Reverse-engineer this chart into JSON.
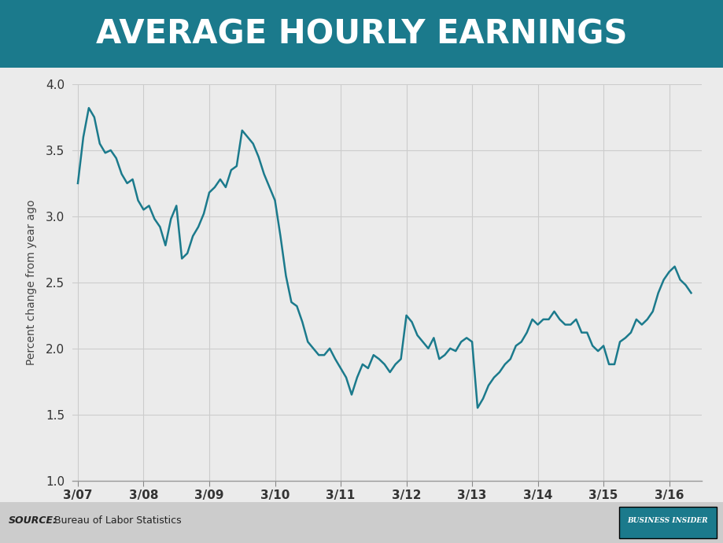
{
  "title": "AVERAGE HOURLY EARNINGS",
  "title_bg_color": "#1b7a8c",
  "title_text_color": "#ffffff",
  "chart_bg_color": "#ebebeb",
  "line_color": "#1b7a8c",
  "ylabel": "Percent change from year ago",
  "ylim": [
    1.0,
    4.0
  ],
  "yticks": [
    1.0,
    1.5,
    2.0,
    2.5,
    3.0,
    3.5,
    4.0
  ],
  "source_text": "SOURCE:  Bureau of Labor Statistics",
  "footer_bg_color": "#cccccc",
  "bi_label": "BUSINESS INSIDER",
  "bi_bg_color": "#1b7a8c",
  "xtick_labels": [
    "3/07",
    "3/08",
    "3/09",
    "3/10",
    "3/11",
    "3/12",
    "3/13",
    "3/14",
    "3/15",
    "3/16"
  ],
  "data_x": [
    0,
    1,
    2,
    3,
    4,
    5,
    6,
    7,
    8,
    9,
    10,
    11,
    12,
    13,
    14,
    15,
    16,
    17,
    18,
    19,
    20,
    21,
    22,
    23,
    24,
    25,
    26,
    27,
    28,
    29,
    30,
    31,
    32,
    33,
    34,
    35,
    36,
    37,
    38,
    39,
    40,
    41,
    42,
    43,
    44,
    45,
    46,
    47,
    48,
    49,
    50,
    51,
    52,
    53,
    54,
    55,
    56,
    57,
    58,
    59,
    60,
    61,
    62,
    63,
    64,
    65,
    66,
    67,
    68,
    69,
    70,
    71,
    72,
    73,
    74,
    75,
    76,
    77,
    78,
    79,
    80,
    81,
    82,
    83,
    84,
    85,
    86,
    87,
    88,
    89,
    90,
    91,
    92,
    93,
    94,
    95,
    96,
    97,
    98,
    99,
    100,
    101,
    102,
    103,
    104,
    105,
    106,
    107,
    108,
    109,
    110,
    111,
    112
  ],
  "data_y": [
    3.25,
    3.6,
    3.82,
    3.75,
    3.55,
    3.48,
    3.5,
    3.44,
    3.32,
    3.25,
    3.28,
    3.12,
    3.05,
    3.08,
    2.98,
    2.92,
    2.78,
    2.98,
    3.08,
    2.68,
    2.72,
    2.85,
    2.92,
    3.02,
    3.18,
    3.22,
    3.28,
    3.22,
    3.35,
    3.38,
    3.65,
    3.6,
    3.55,
    3.45,
    3.32,
    3.22,
    3.12,
    2.85,
    2.55,
    2.35,
    2.32,
    2.2,
    2.05,
    2.0,
    1.95,
    1.95,
    2.0,
    1.92,
    1.85,
    1.78,
    1.65,
    1.78,
    1.88,
    1.85,
    1.95,
    1.92,
    1.88,
    1.82,
    1.88,
    1.92,
    2.25,
    2.2,
    2.1,
    2.05,
    2.0,
    2.08,
    1.92,
    1.95,
    2.0,
    1.98,
    2.05,
    2.08,
    2.05,
    1.55,
    1.62,
    1.72,
    1.78,
    1.82,
    1.88,
    1.92,
    2.02,
    2.05,
    2.12,
    2.22,
    2.18,
    2.22,
    2.22,
    2.28,
    2.22,
    2.18,
    2.18,
    2.22,
    2.12,
    2.12,
    2.02,
    1.98,
    2.02,
    1.88,
    1.88,
    2.05,
    2.08,
    2.12,
    2.22,
    2.18,
    2.22,
    2.28,
    2.42,
    2.52,
    2.58,
    2.62,
    2.52,
    2.48,
    2.42
  ]
}
